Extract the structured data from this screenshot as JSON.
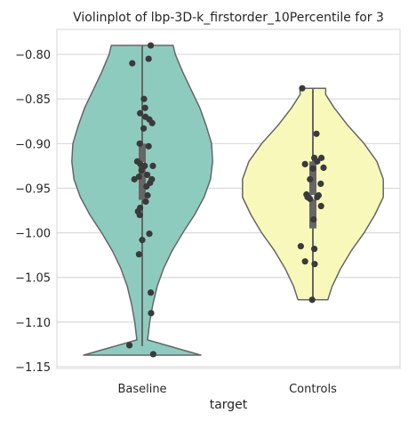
{
  "chart_data": {
    "type": "violin",
    "title": "Violinplot of lbp-3D-k_firstorder_10Percentile for 3",
    "xlabel": "target",
    "ylabel": "",
    "ylim": [
      -1.152,
      -0.772
    ],
    "yticks": [
      -0.8,
      -0.85,
      -0.9,
      -0.95,
      -1.0,
      -1.05,
      -1.1,
      -1.15
    ],
    "ytick_labels": [
      "−0.80",
      "−0.85",
      "−0.90",
      "−0.95",
      "−1.00",
      "−1.05",
      "−1.10",
      "−1.15"
    ],
    "categories": [
      "Baseline",
      "Controls"
    ],
    "grid": true,
    "colors": {
      "Baseline": "#8ecbbf",
      "Controls": "#f8f8bb",
      "outline": "#666666",
      "points": "#3a3a3a",
      "grid": "#d9d9d9"
    },
    "violins": [
      {
        "name": "Baseline",
        "min": -1.137,
        "max": -0.79,
        "q1": -0.963,
        "median": -0.923,
        "q3": -0.9,
        "whisker_low": -1.127,
        "whisker_high": -0.79,
        "density": [
          [
            -1.137,
            0.55
          ],
          [
            -1.12,
            0.05
          ],
          [
            -1.1,
            0.07
          ],
          [
            -1.08,
            0.1
          ],
          [
            -1.06,
            0.14
          ],
          [
            -1.04,
            0.2
          ],
          [
            -1.02,
            0.28
          ],
          [
            -1.0,
            0.38
          ],
          [
            -0.98,
            0.49
          ],
          [
            -0.96,
            0.58
          ],
          [
            -0.94,
            0.64
          ],
          [
            -0.92,
            0.66
          ],
          [
            -0.9,
            0.65
          ],
          [
            -0.88,
            0.6
          ],
          [
            -0.86,
            0.54
          ],
          [
            -0.84,
            0.46
          ],
          [
            -0.82,
            0.38
          ],
          [
            -0.8,
            0.31
          ],
          [
            -0.79,
            0.29
          ]
        ],
        "points": [
          [
            0.24,
            -0.79
          ],
          [
            0.18,
            -0.805
          ],
          [
            -0.28,
            -0.81
          ],
          [
            0.05,
            -0.85
          ],
          [
            0.08,
            -0.86
          ],
          [
            -0.06,
            -0.866
          ],
          [
            0.09,
            -0.87
          ],
          [
            0.2,
            -0.873
          ],
          [
            0.28,
            -0.877
          ],
          [
            0.04,
            -0.883
          ],
          [
            -0.07,
            -0.9
          ],
          [
            0.18,
            -0.903
          ],
          [
            -0.14,
            -0.92
          ],
          [
            -0.05,
            -0.923
          ],
          [
            0.07,
            -0.925
          ],
          [
            0.3,
            -0.925
          ],
          [
            -0.02,
            -0.93
          ],
          [
            0.14,
            -0.935
          ],
          [
            -0.09,
            -0.937
          ],
          [
            0.27,
            -0.94
          ],
          [
            0.22,
            -0.944
          ],
          [
            -0.22,
            -0.94
          ],
          [
            0.12,
            -0.948
          ],
          [
            0.15,
            -0.958
          ],
          [
            0.1,
            -0.965
          ],
          [
            -0.06,
            -0.972
          ],
          [
            -0.12,
            -0.976
          ],
          [
            -0.07,
            -0.98
          ],
          [
            0.2,
            -1.001
          ],
          [
            0.0,
            -1.008
          ],
          [
            -0.09,
            -1.024
          ],
          [
            0.24,
            -1.067
          ],
          [
            0.25,
            -1.09
          ],
          [
            -0.36,
            -1.126
          ],
          [
            0.31,
            -1.136
          ]
        ]
      },
      {
        "name": "Controls",
        "min": -1.075,
        "max": -0.838,
        "q1": -0.995,
        "median": -0.96,
        "q3": -0.92,
        "whisker_low": -1.075,
        "whisker_high": -0.838,
        "density": [
          [
            -1.075,
            0.14
          ],
          [
            -1.06,
            0.18
          ],
          [
            -1.04,
            0.26
          ],
          [
            -1.02,
            0.36
          ],
          [
            -1.0,
            0.48
          ],
          [
            -0.98,
            0.58
          ],
          [
            -0.96,
            0.66
          ],
          [
            -0.94,
            0.66
          ],
          [
            -0.92,
            0.6
          ],
          [
            -0.9,
            0.48
          ],
          [
            -0.88,
            0.33
          ],
          [
            -0.86,
            0.2
          ],
          [
            -0.845,
            0.12
          ],
          [
            -0.838,
            0.12
          ]
        ],
        "points": [
          [
            -0.3,
            -0.838
          ],
          [
            0.1,
            -0.889
          ],
          [
            0.04,
            -0.916
          ],
          [
            0.24,
            -0.916
          ],
          [
            -0.22,
            -0.923
          ],
          [
            0.12,
            -0.92
          ],
          [
            0.3,
            -0.927
          ],
          [
            0.0,
            -0.928
          ],
          [
            -0.08,
            -0.94
          ],
          [
            0.22,
            -0.945
          ],
          [
            -0.18,
            -0.957
          ],
          [
            0.16,
            -0.958
          ],
          [
            0.12,
            -0.96
          ],
          [
            -0.15,
            -0.96
          ],
          [
            -0.08,
            -0.962
          ],
          [
            0.23,
            -0.97
          ],
          [
            0.02,
            -0.985
          ],
          [
            -0.34,
            -1.015
          ],
          [
            0.04,
            -1.018
          ],
          [
            -0.22,
            -1.032
          ],
          [
            0.05,
            -1.035
          ],
          [
            -0.02,
            -1.075
          ]
        ]
      }
    ]
  }
}
